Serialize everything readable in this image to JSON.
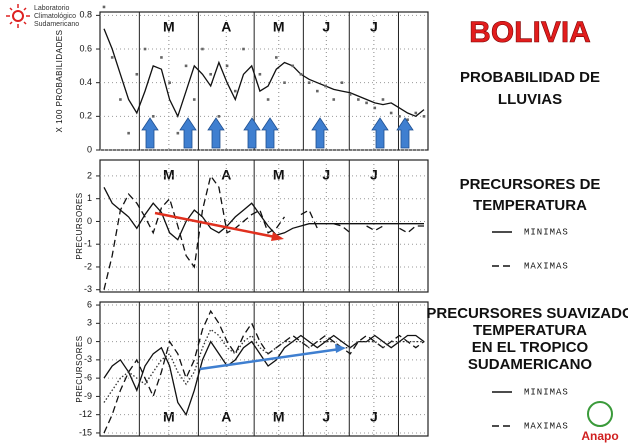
{
  "header": {
    "logo_lines": [
      "Laboratorio",
      "Climatológico",
      "Sudamericano"
    ],
    "country": "BOLIVIA",
    "brand": "Anapo"
  },
  "chart_data": [
    {
      "type": "line",
      "title_lines": [
        "PROBABILIDAD DE",
        "LLUVIAS"
      ],
      "ylabel": "X 100 PROBABILIDADES",
      "month_labels": [
        "M",
        "A",
        "M",
        "J",
        "J"
      ],
      "ylim": [
        0,
        0.82
      ],
      "yticks": [
        0,
        0.2,
        0.4,
        0.6,
        0.8
      ],
      "grid": true,
      "series": [
        {
          "color": "#111111",
          "style": "solid",
          "values": [
            0.72,
            0.6,
            0.45,
            0.3,
            0.22,
            0.35,
            0.5,
            0.48,
            0.3,
            0.2,
            0.35,
            0.5,
            0.45,
            0.38,
            0.52,
            0.4,
            0.3,
            0.45,
            0.5,
            0.35,
            0.38,
            0.48,
            0.52,
            0.5,
            0.45,
            0.42,
            0.4,
            0.38,
            0.36,
            0.35,
            0.34,
            0.32,
            0.3,
            0.28,
            0.27,
            0.28,
            0.25,
            0.22,
            0.2,
            0.24
          ]
        },
        {
          "color": "#666666",
          "style": "points",
          "values": [
            0.85,
            0.55,
            0.3,
            0.1,
            0.45,
            0.6,
            0.2,
            0.55,
            0.4,
            0.1,
            0.5,
            0.3,
            0.6,
            0.45,
            0.2,
            0.5,
            0.35,
            0.6,
            0.1,
            0.45,
            0.3,
            0.55,
            0.4,
            0.5,
            0.45,
            0.4,
            0.35,
            0.38,
            0.3,
            0.4,
            0.33,
            0.3,
            0.28,
            0.25,
            0.3,
            0.22,
            0.2,
            0.18,
            0.22,
            0.2
          ]
        }
      ]
    },
    {
      "type": "line",
      "title_lines": [
        "PRECURSORES DE",
        "TEMPERATURA"
      ],
      "ylabel": "PRECURSORES",
      "month_labels": [
        "M",
        "A",
        "M",
        "J",
        "J"
      ],
      "ylim": [
        -3.1,
        2.7
      ],
      "yticks": [
        -3,
        -2,
        -1,
        0,
        1,
        2
      ],
      "grid": true,
      "series": [
        {
          "name": "MINIMAS",
          "color": "#111111",
          "style": "solid",
          "values": [
            1.5,
            0.8,
            0.5,
            0.2,
            -0.3,
            0.3,
            0.8,
            0.4,
            -0.5,
            -0.8,
            0,
            0.5,
            0.2,
            -0.3,
            -0.5,
            -0.2,
            0.2,
            0.5,
            0.8,
            0.3,
            -0.2,
            -0.6,
            -0.5,
            -0.3,
            -0.2,
            -0.1,
            -0.1,
            -0.1,
            -0.1,
            -0.1,
            -0.1,
            -0.1,
            -0.1,
            -0.1,
            -0.1,
            -0.1,
            -0.1,
            -0.1,
            -0.1,
            -0.1
          ]
        },
        {
          "name": "MAXIMAS",
          "color": "#111111",
          "style": "dashed",
          "values": [
            -3,
            -1.5,
            0.5,
            1.2,
            0.8,
            0.2,
            -0.5,
            0.6,
            1,
            -0.2,
            -1.5,
            -2,
            0.5,
            2,
            1.5,
            -0.5,
            -0.3,
            0,
            0.3,
            0.5,
            -0.5,
            -0.3,
            0.2,
            null,
            0.3,
            0.5,
            -0.3,
            null,
            -0.1,
            -0.2,
            -0.5,
            null,
            -0.2,
            -0.4,
            -0.2,
            null,
            -0.3,
            -0.5,
            -0.2,
            -0.2
          ]
        }
      ]
    },
    {
      "type": "line",
      "title_lines": [
        "PRECURSORES SUAVIZADO",
        "TEMPERATURA",
        "EN EL TROPICO",
        "SUDAMERICANO"
      ],
      "ylabel": "PRECURSORES",
      "month_labels": [
        "M",
        "A",
        "M",
        "J",
        "J"
      ],
      "ylim": [
        -15.5,
        6.5
      ],
      "yticks": [
        -15,
        -12,
        -9,
        -6,
        -3,
        0,
        3,
        6
      ],
      "grid": true,
      "series": [
        {
          "name": "MINIMAS",
          "color": "#111111",
          "style": "solid",
          "values": [
            -6,
            -4,
            -3,
            -5,
            -8,
            -4,
            -2,
            -1,
            -4,
            -10,
            -12,
            -8,
            -3,
            0,
            -2,
            -4,
            -3,
            -1,
            0,
            -2,
            -4,
            -3,
            -1,
            0,
            1,
            0,
            -1,
            0,
            1,
            0,
            -1,
            0,
            0,
            1,
            0,
            -1,
            0,
            1,
            1,
            0
          ]
        },
        {
          "name": "MAXIMAS",
          "color": "#111111",
          "style": "dashed",
          "values": [
            -15,
            -12,
            -8,
            -5,
            -3,
            -6,
            -9,
            -5,
            0,
            -2,
            -6,
            -3,
            2,
            5,
            3,
            0,
            -2,
            1,
            3,
            0,
            -2,
            -1,
            0,
            1,
            0,
            -1,
            0,
            1,
            0,
            -1,
            -2,
            0,
            1,
            0,
            -1,
            0,
            1,
            0,
            -1,
            0
          ]
        },
        {
          "color": "#333333",
          "style": "dotted",
          "values": [
            -10,
            -8,
            -6,
            -5,
            -6,
            -7,
            -5,
            -3,
            -2,
            -5,
            -7,
            -5,
            -1,
            2,
            1,
            -1,
            -2,
            0,
            1,
            -1,
            -2,
            -1,
            0,
            0,
            0,
            -1,
            0,
            0,
            0,
            -1,
            -1,
            0,
            0,
            0,
            -1,
            0,
            0,
            0,
            0,
            0
          ]
        }
      ]
    }
  ]
}
